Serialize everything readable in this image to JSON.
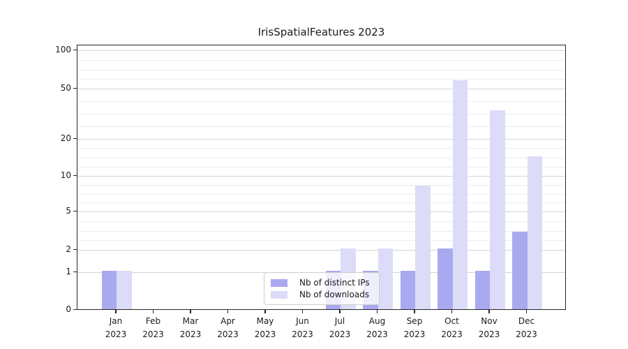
{
  "title": "IrisSpatialFeatures 2023",
  "colors": {
    "distinct_ips": "#a9a9f0",
    "downloads": "#dcdcf8",
    "grid_major": "#d4d4d4",
    "grid_minor": "#ededed",
    "spine": "#262626",
    "text": "#1a1a1a"
  },
  "legend": {
    "entries": [
      {
        "label": "Nb of distinct IPs",
        "color_key": "distinct_ips"
      },
      {
        "label": "Nb of downloads",
        "color_key": "downloads"
      }
    ]
  },
  "chart_data": {
    "type": "bar",
    "title": "IrisSpatialFeatures 2023",
    "categories": [
      "Jan 2023",
      "Feb 2023",
      "Mar 2023",
      "Apr 2023",
      "May 2023",
      "Jun 2023",
      "Jul 2023",
      "Aug 2023",
      "Sep 2023",
      "Oct 2023",
      "Nov 2023",
      "Dec 2023"
    ],
    "series": [
      {
        "name": "Nb of distinct IPs",
        "values": [
          1,
          0,
          0,
          0,
          0,
          0,
          1,
          1,
          1,
          2,
          1,
          3
        ]
      },
      {
        "name": "Nb of downloads",
        "values": [
          1,
          0,
          0,
          0,
          0,
          0,
          2,
          2,
          8,
          57,
          33,
          14
        ]
      }
    ],
    "y_ticks": [
      0,
      1,
      2,
      5,
      10,
      20,
      50,
      100
    ],
    "y_tick_labels": [
      "0",
      "1",
      "2",
      "5",
      "10",
      "20",
      "50",
      "100"
    ],
    "y_scale": "symlog-like (compressed log, 0 at baseline)",
    "ylim": [
      0,
      110
    ],
    "xlabel": "",
    "ylabel": "",
    "grid": "horizontal major + faint minor lines",
    "legend_position": "lower center"
  }
}
